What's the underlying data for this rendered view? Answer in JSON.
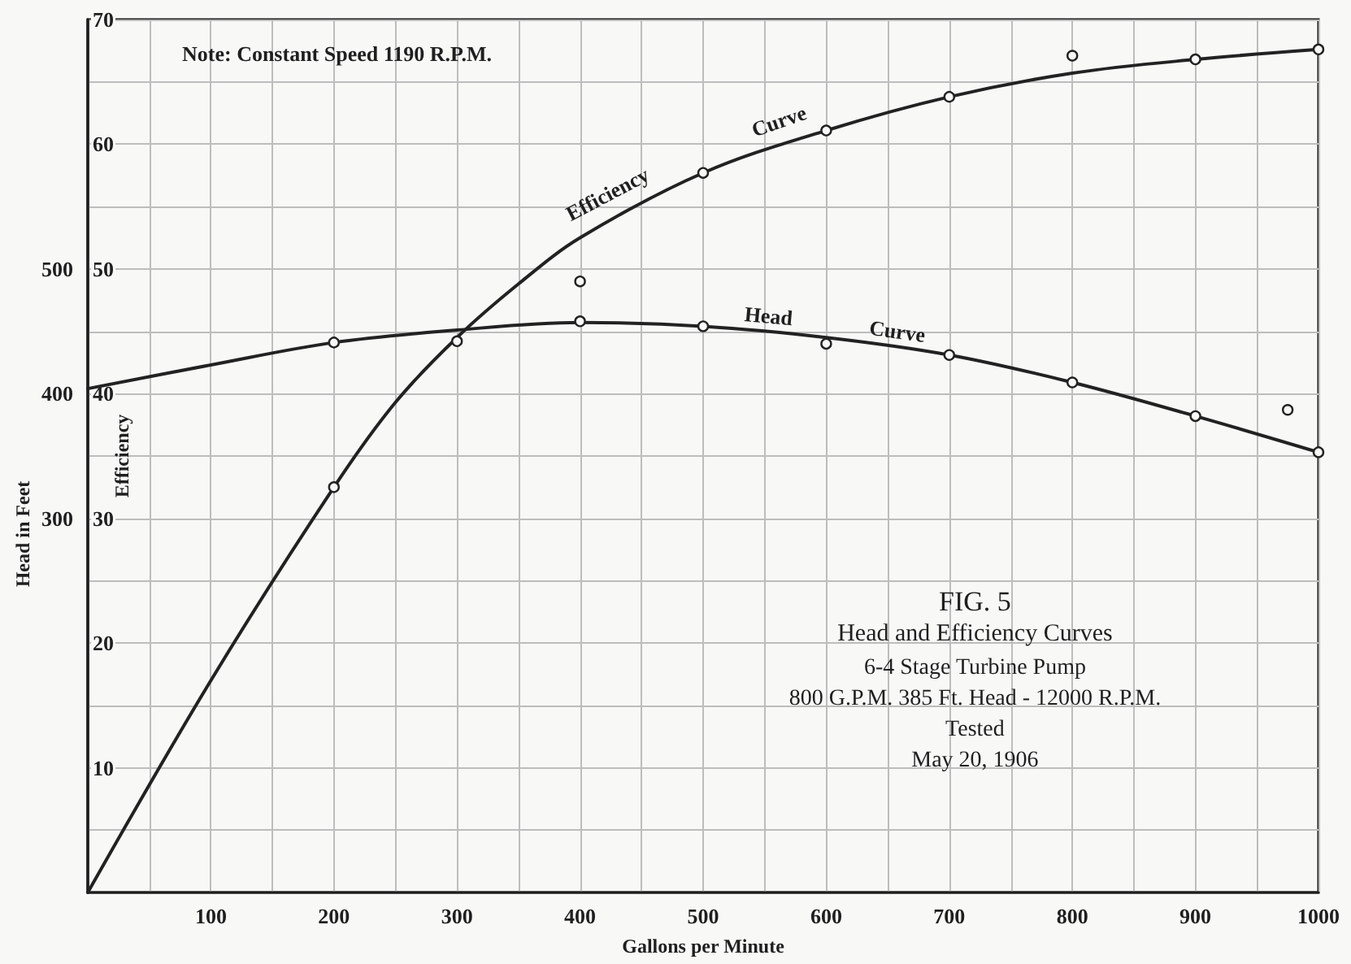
{
  "chart_data": {
    "type": "line",
    "title": "FIG. 5",
    "subtitle": "Head and Efficiency Curves",
    "xlabel": "Gallons per Minute",
    "ylabel": "Head in Feet",
    "y2label": "Efficiency",
    "annotations": [
      "Note: Constant Speed 1190 R.P.M.",
      "6-4 Stage Turbine Pump",
      "800 G.P.M. 385 Ft. Head - 12000 R.P.M.",
      "Tested",
      "May 20, 1906",
      "Efficiency",
      "Curve",
      "Head",
      "Curve"
    ],
    "series": [
      {
        "color": "#222222",
        "axis": "y2",
        "x": [
          0,
          100,
          200,
          250,
          300,
          350,
          400,
          500,
          600,
          700,
          800,
          900,
          1000
        ],
        "values": [
          0,
          17,
          32.5,
          39.3,
          44.5,
          48.8,
          52.5,
          57.7,
          61.1,
          63.8,
          65.7,
          66.8,
          67.6
        ]
      },
      {
        "type": "scatter",
        "color": "#222222",
        "axis": "y2",
        "marker": "circle",
        "x": [
          200,
          300,
          400,
          500,
          600,
          700,
          800,
          900,
          1000
        ],
        "values": [
          32.5,
          44.2,
          49,
          57.7,
          61.1,
          63.8,
          67.1,
          66.8,
          67.6
        ]
      },
      {
        "color": "#222222",
        "x": [
          0,
          100,
          200,
          300,
          400,
          500,
          600,
          700,
          800,
          900,
          1000
        ],
        "values": [
          404,
          423,
          441,
          451,
          457,
          454,
          445,
          431,
          409,
          382,
          353
        ]
      },
      {
        "type": "scatter",
        "color": "#222222",
        "marker": "circle",
        "x": [
          200,
          400,
          500,
          600,
          700,
          800,
          900,
          975,
          1000
        ],
        "values": [
          441,
          458,
          454,
          440,
          431,
          409,
          382,
          387,
          353
        ]
      }
    ],
    "xlim": [
      0,
      1000
    ],
    "xticks": [
      {
        "value": 50,
        "label": null
      },
      100,
      {
        "value": 150,
        "label": null
      },
      200,
      {
        "value": 250,
        "label": null
      },
      300,
      {
        "value": 350,
        "label": null
      },
      400,
      {
        "value": 450,
        "label": null
      },
      500,
      {
        "value": 550,
        "label": null
      },
      600,
      {
        "value": 650,
        "label": null
      },
      700,
      {
        "value": 750,
        "label": null
      },
      800,
      {
        "value": 850,
        "label": null
      },
      900,
      {
        "value": 950,
        "label": null
      },
      1000
    ],
    "ylim": [
      0,
      700
    ],
    "yticks": [
      300,
      400,
      500
    ],
    "y2lim": [
      0,
      70
    ],
    "y2ticks": [
      {
        "value": 5,
        "label": null
      },
      10,
      {
        "value": 15,
        "label": null
      },
      20,
      {
        "value": 25,
        "label": null
      },
      30,
      {
        "value": 35,
        "label": null
      },
      40,
      {
        "value": 45,
        "label": null
      },
      50,
      {
        "value": 55,
        "label": null
      },
      60,
      {
        "value": 65,
        "label": null
      },
      70
    ],
    "grid": true
  }
}
